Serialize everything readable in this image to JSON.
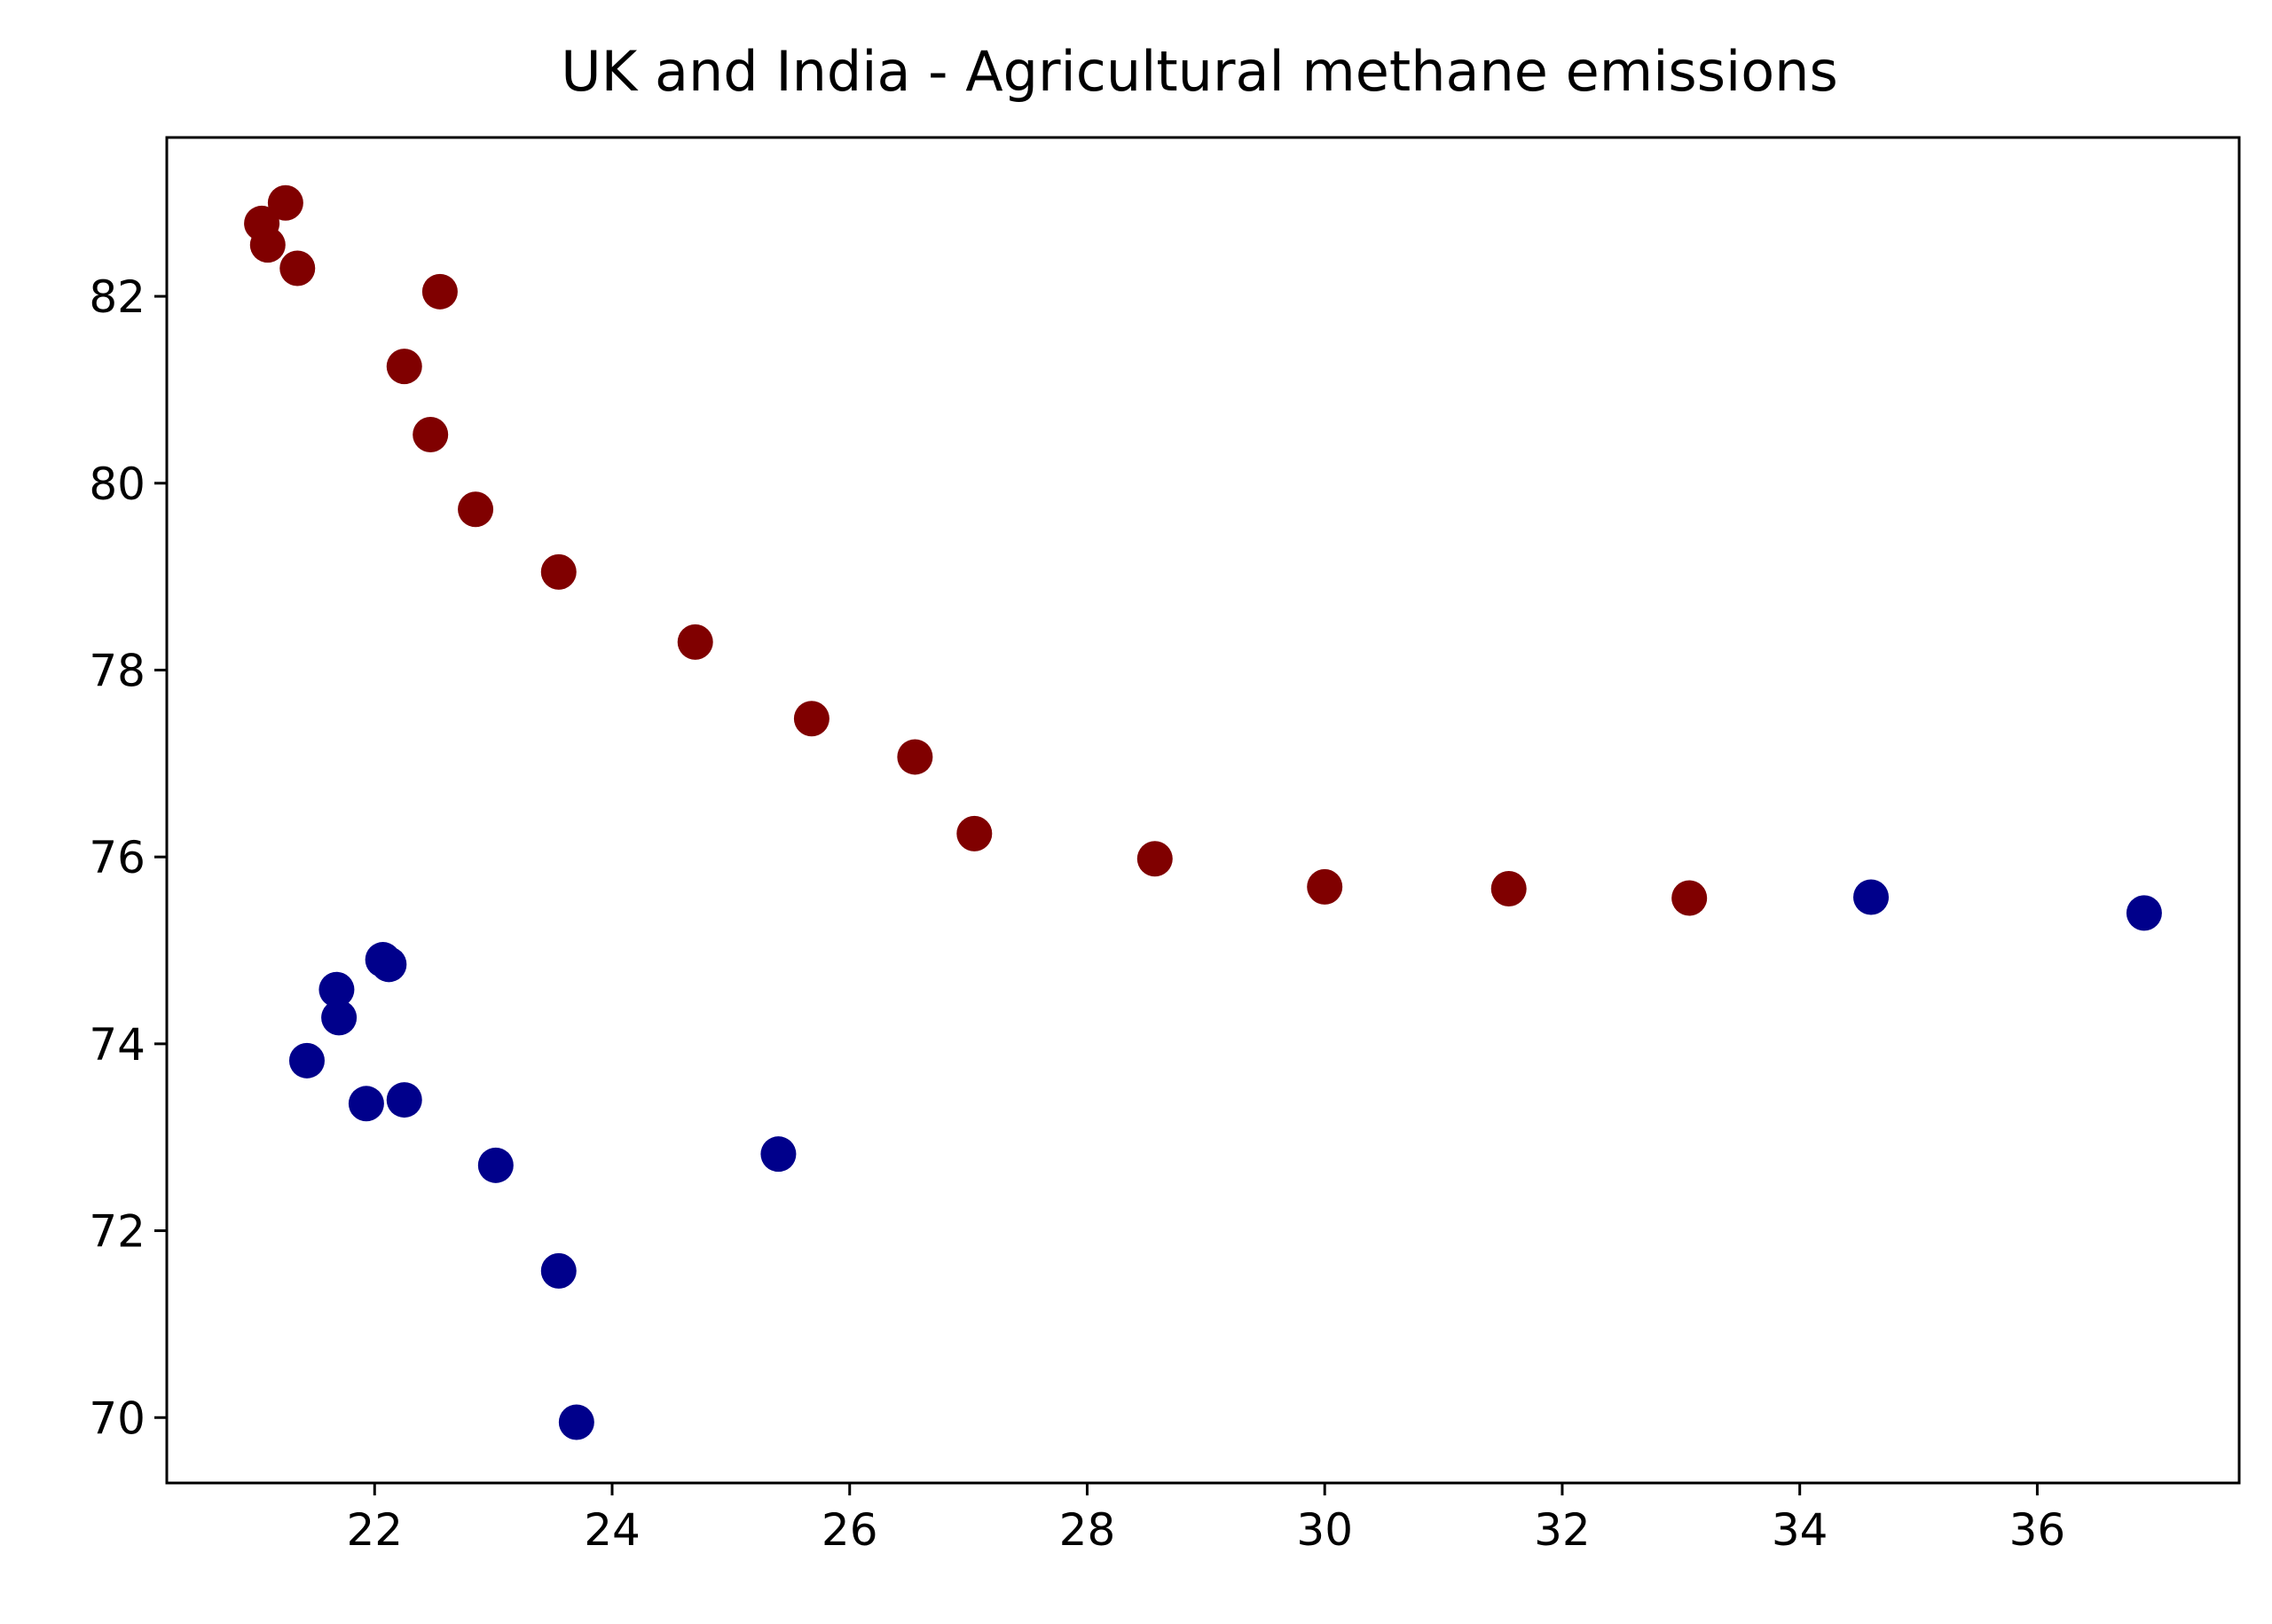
{
  "chart_data": {
    "type": "scatter",
    "title": "UK and India - Agricultural methane emissions",
    "xlabel": "",
    "ylabel": "",
    "xlim": [
      20.25,
      37.7
    ],
    "ylim": [
      69.3,
      83.7
    ],
    "xticks": [
      22,
      24,
      26,
      28,
      30,
      32,
      34,
      36
    ],
    "yticks": [
      70,
      72,
      74,
      76,
      78,
      80,
      82
    ],
    "grid": false,
    "legend": "none",
    "series": [
      {
        "color": "#800000",
        "points": [
          {
            "x": 21.05,
            "y": 82.78
          },
          {
            "x": 21.25,
            "y": 83.0
          },
          {
            "x": 21.1,
            "y": 82.55
          },
          {
            "x": 21.35,
            "y": 82.3
          },
          {
            "x": 22.55,
            "y": 82.05
          },
          {
            "x": 22.25,
            "y": 81.25
          },
          {
            "x": 22.47,
            "y": 80.52
          },
          {
            "x": 22.85,
            "y": 79.72
          },
          {
            "x": 23.55,
            "y": 79.05
          },
          {
            "x": 24.7,
            "y": 78.3
          },
          {
            "x": 25.68,
            "y": 77.48
          },
          {
            "x": 26.55,
            "y": 77.07
          },
          {
            "x": 27.05,
            "y": 76.25
          },
          {
            "x": 28.57,
            "y": 75.98
          },
          {
            "x": 30.0,
            "y": 75.68
          },
          {
            "x": 31.55,
            "y": 75.66
          },
          {
            "x": 33.07,
            "y": 75.56
          }
        ]
      },
      {
        "color": "#00008b",
        "points": [
          {
            "x": 34.6,
            "y": 75.57
          },
          {
            "x": 36.9,
            "y": 75.4
          },
          {
            "x": 22.07,
            "y": 74.9
          },
          {
            "x": 22.12,
            "y": 74.85
          },
          {
            "x": 21.68,
            "y": 74.58
          },
          {
            "x": 21.7,
            "y": 74.28
          },
          {
            "x": 21.43,
            "y": 73.82
          },
          {
            "x": 21.93,
            "y": 73.36
          },
          {
            "x": 22.25,
            "y": 73.4
          },
          {
            "x": 23.02,
            "y": 72.7
          },
          {
            "x": 25.4,
            "y": 72.82
          },
          {
            "x": 23.55,
            "y": 71.57
          },
          {
            "x": 23.7,
            "y": 69.95
          }
        ]
      }
    ]
  }
}
